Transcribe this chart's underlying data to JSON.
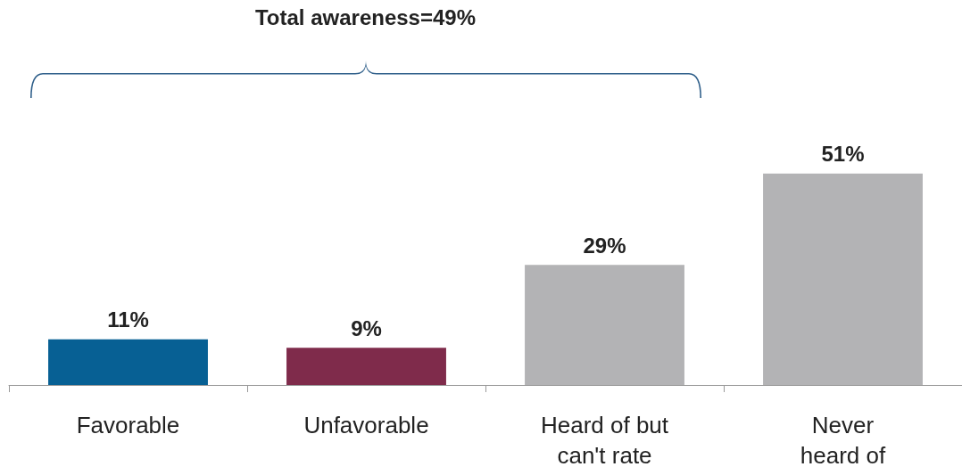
{
  "chart_data": {
    "type": "bar",
    "categories": [
      "Favorable",
      "Unfavorable",
      "Heard of but\ncan't rate",
      "Never\nheard of"
    ],
    "values": [
      11,
      9,
      29,
      51
    ],
    "colors": [
      "#076094",
      "#7f2b4b",
      "#b3b3b5",
      "#b3b3b5"
    ],
    "value_labels": [
      "11%",
      "9%",
      "29%",
      "51%"
    ],
    "grid": false,
    "annotations": [
      "Total awareness=49%"
    ]
  }
}
